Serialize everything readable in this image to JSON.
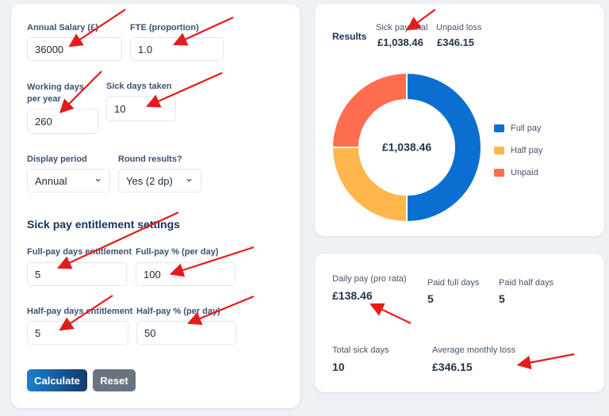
{
  "form": {
    "fields": [
      {
        "label": "Annual Salary (£)",
        "value": "36000"
      },
      {
        "label": "FTE (proportion)",
        "value": "1.0"
      },
      {
        "label": "Working days per year",
        "value": "260"
      },
      {
        "label": "Sick days taken",
        "value": "10"
      },
      {
        "label": "Display period",
        "value": "Annual"
      },
      {
        "label": "Round results?",
        "value": "Yes (2 dp)"
      }
    ],
    "section_title": "Sick pay entitlement settings",
    "entitlement_fields": [
      {
        "label": "Full-pay days entitlement",
        "value": "5"
      },
      {
        "label": "Full-pay % (per day)",
        "value": "100"
      },
      {
        "label": "Half-pay days entitlement",
        "value": "5"
      },
      {
        "label": "Half-pay % (per day)",
        "value": "50"
      }
    ],
    "buttons": [
      "Calculate",
      "Reset"
    ]
  },
  "results": {
    "title": "Results",
    "stats": [
      {
        "label": "Sick pay total",
        "value": "£1,038.46"
      },
      {
        "label": "Unpaid loss",
        "value": "£346.15"
      }
    ]
  },
  "chart_data": {
    "type": "pie",
    "donut": true,
    "center_label": "£1,038.46",
    "categories": [
      "Full pay",
      "Half pay",
      "Unpaid"
    ],
    "values": [
      692.3,
      346.15,
      346.15
    ],
    "colors": [
      "#0a6fd1",
      "#ffb74d",
      "#ff6f4f"
    ]
  },
  "summary": [
    {
      "label": "Daily pay (pro rata)",
      "value": "£138.46"
    },
    {
      "label": "Paid full days",
      "value": "5"
    },
    {
      "label": "Paid half days",
      "value": "5"
    },
    {
      "label": "Total sick days",
      "value": "10"
    },
    {
      "label": "Average monthly loss",
      "value": "£346.15"
    }
  ]
}
